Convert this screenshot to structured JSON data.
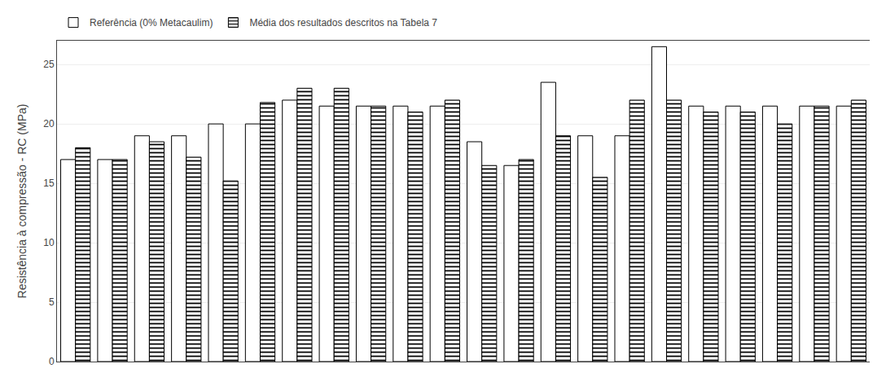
{
  "chart_data": {
    "type": "bar",
    "ylabel": "Resistência à compressão - RC (MPa)",
    "categories": [
      null,
      null,
      null,
      null,
      null,
      null,
      null,
      null,
      null,
      null,
      null,
      null,
      null,
      null,
      null,
      null,
      null,
      null,
      null,
      null,
      null,
      null
    ],
    "series": [
      {
        "name": "Referência (0% Metacaulim)",
        "color": "#ffffff",
        "values": [
          17.0,
          17.0,
          19.0,
          19.0,
          20.0,
          20.0,
          22.0,
          21.5,
          21.5,
          21.5,
          21.5,
          18.5,
          16.5,
          23.5,
          19.0,
          19.0,
          26.5,
          21.5,
          21.5,
          21.5,
          21.5,
          21.5
        ]
      },
      {
        "name": "Média dos resultados descritos na Tabela 7",
        "color": "#ffffff",
        "values": [
          18.0,
          17.0,
          18.5,
          17.2,
          15.2,
          21.8,
          23.0,
          23.0,
          21.5,
          21.0,
          22.0,
          16.5,
          17.0,
          19.0,
          15.5,
          22.0,
          22.0,
          21.0,
          21.0,
          20.0,
          21.5,
          22.0
        ]
      }
    ],
    "ylim": [
      0,
      27
    ],
    "yticks": [
      0,
      5,
      10,
      15,
      20,
      25
    ],
    "grid": true,
    "legend": "upper left",
    "tick_labels": "y"
  }
}
